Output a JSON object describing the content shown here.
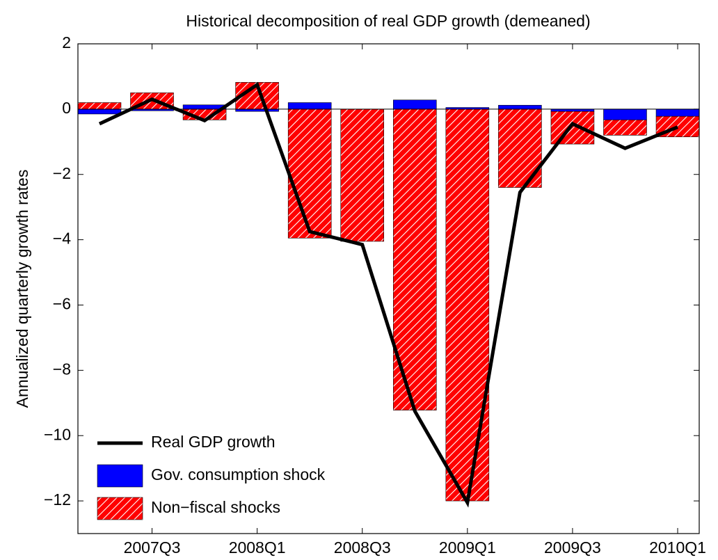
{
  "chart_data": {
    "type": "bar",
    "title": "Historical decomposition of real GDP growth (demeaned)",
    "y_label": "Annualized quarterly growth rates",
    "categories": [
      null,
      "2007Q3",
      null,
      "2008Q1",
      null,
      "2008Q3",
      null,
      "2009Q1",
      null,
      "2009Q3",
      null,
      "2010Q1"
    ],
    "series": [
      {
        "name": "Gov. consumption shock",
        "color": "#0000ff",
        "type": "bar",
        "values": [
          -0.15,
          -0.05,
          0.13,
          -0.07,
          0.2,
          0,
          0.28,
          0.05,
          0.12,
          -0.07,
          -0.33,
          -0.22
        ]
      },
      {
        "name": "Non−fiscal shocks",
        "color": "#ff0000",
        "type": "bar",
        "hatch": true,
        "values": [
          0.2,
          0.5,
          -0.33,
          0.82,
          -3.95,
          -4.05,
          -9.22,
          -12.0,
          -2.4,
          -1.0,
          -0.47,
          -0.63
        ]
      },
      {
        "name": "Real GDP growth",
        "color": "#000000",
        "type": "line",
        "values": [
          -0.45,
          0.3,
          -0.35,
          0.75,
          -3.75,
          -4.15,
          -9.25,
          -12.05,
          -2.55,
          -0.45,
          -1.2,
          -0.55
        ]
      }
    ],
    "ylim": [
      -13,
      2
    ],
    "yticks": [
      {
        "value": -12,
        "label": "−12"
      },
      {
        "value": -10,
        "label": "−10"
      },
      {
        "value": -8,
        "label": "−8"
      },
      {
        "value": -6,
        "label": "−6"
      },
      {
        "value": -4,
        "label": "−4"
      },
      {
        "value": -2,
        "label": "−2"
      },
      0,
      2
    ],
    "legend": "lower left"
  }
}
